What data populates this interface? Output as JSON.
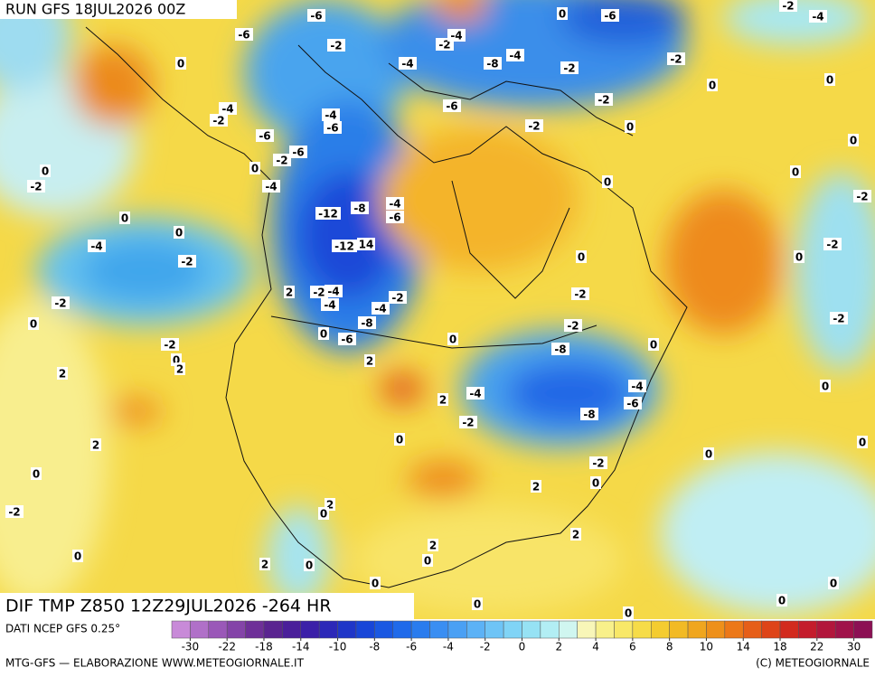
{
  "header": {
    "run": "RUN GFS 18JUL2026 00Z"
  },
  "map": {
    "caption": "DIF TMP Z850 12Z29JUL2026 -264 HR",
    "labels": [
      "-6",
      "0",
      "-6",
      "-2",
      "-4",
      "-6",
      "-2",
      "-2",
      "-4",
      "-4",
      "-8",
      "-4",
      "-2",
      "-2",
      "0",
      "0",
      "0",
      "-4",
      "-2",
      "-6",
      "-4",
      "-6",
      "-6",
      "-2",
      "-2",
      "0",
      "0",
      "-6",
      "-2",
      "0",
      "0",
      "-2",
      "-4",
      "0",
      "0",
      "-12",
      "-8",
      "-4",
      "-6",
      "-12",
      "14",
      "-4",
      "0",
      "-2",
      "0",
      "0",
      "-2",
      "0",
      "-2",
      "2",
      "-4",
      "-2",
      "-2",
      "0",
      "-4",
      "-2",
      "-4",
      "-2",
      "-8",
      "-2",
      "-2",
      "-6",
      "0",
      "0",
      "-2",
      "0",
      "2",
      "2",
      "2",
      "-8",
      "0",
      "-4",
      "0",
      "-4",
      "2",
      "-6",
      "-8",
      "-2",
      "0",
      "2",
      "0",
      "0",
      "0",
      "-2",
      "2",
      "0",
      "2",
      "0",
      "-2",
      "2",
      "2",
      "0",
      "0",
      "2",
      "0",
      "0",
      "0",
      "0",
      "0",
      "0"
    ]
  },
  "legend": {
    "source": "DATI NCEP GFS 0.25°",
    "ticks": [
      -30,
      -22,
      -18,
      -14,
      -10,
      -8,
      -6,
      -4,
      -2,
      0,
      2,
      4,
      6,
      8,
      10,
      14,
      18,
      22,
      30
    ],
    "colors": [
      "#c88ad8",
      "#b070c8",
      "#9a58b8",
      "#8444a8",
      "#6e3098",
      "#5a2490",
      "#4a1f9a",
      "#3b20a8",
      "#2c28b8",
      "#1f36c8",
      "#1846d8",
      "#1a58e2",
      "#1f6aea",
      "#2a7cee",
      "#3a8ef2",
      "#4aa0f4",
      "#5cb2f6",
      "#6ec4f6",
      "#80d4f6",
      "#96e2f4",
      "#b2eef4",
      "#d0f6f0",
      "#f8f6b8",
      "#f8f08a",
      "#f8e868",
      "#f6dc48",
      "#f4cc30",
      "#f2ba24",
      "#f0a61e",
      "#ee901a",
      "#ec7818",
      "#e65e18",
      "#de4418",
      "#d22a1e",
      "#c41c2c",
      "#b2163c",
      "#a0124a",
      "#8c1054"
    ]
  },
  "footer": {
    "left": "MTG-GFS — ELABORAZIONE WWW.METEOGIORNALE.IT",
    "right": "(C) METEOGIORNALE"
  }
}
